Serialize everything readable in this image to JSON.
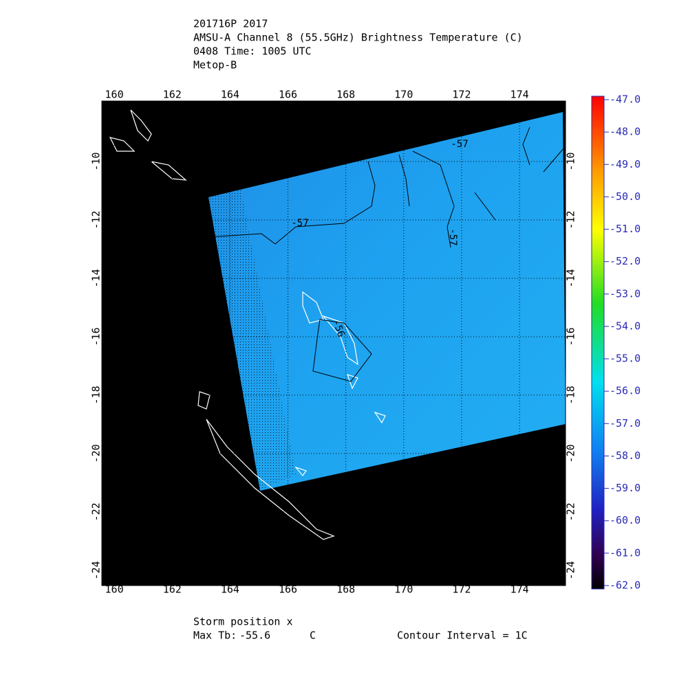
{
  "title_lines": [
    "201716P 2017",
    "AMSU-A Channel 8 (55.5GHz) Brightness Temperature (C)",
    "0408 Time: 1005 UTC",
    "Metop-B"
  ],
  "map": {
    "xlim": [
      159.57,
      175.59
    ],
    "ylim": [
      -24.52,
      -7.93
    ],
    "xticks": [
      160,
      162,
      164,
      166,
      168,
      170,
      172,
      174
    ],
    "yticks": [
      -10,
      -12,
      -14,
      -16,
      -18,
      -20,
      -22,
      -24
    ],
    "grid": true,
    "contour_labels": [
      -57,
      -57,
      -57,
      -56
    ]
  },
  "colorbar": {
    "range": [
      -62,
      -47
    ],
    "ticks": [
      {
        "value": -47,
        "label": "-47.0"
      },
      {
        "value": -48,
        "label": "-48.0"
      },
      {
        "value": -49,
        "label": "-49.0"
      },
      {
        "value": -50,
        "label": "-50.0"
      },
      {
        "value": -51,
        "label": "-51.0"
      },
      {
        "value": -52,
        "label": "-52.0"
      },
      {
        "value": -53,
        "label": "-53.0"
      },
      {
        "value": -54,
        "label": "-54.0"
      },
      {
        "value": -55,
        "label": "-55.0"
      },
      {
        "value": -56,
        "label": "-56.0"
      },
      {
        "value": -57,
        "label": "-57.0"
      },
      {
        "value": -58,
        "label": "-58.0"
      },
      {
        "value": -59,
        "label": "-59.0"
      },
      {
        "value": -60,
        "label": "-60.0"
      },
      {
        "value": -61,
        "label": "-61.0"
      },
      {
        "value": -62,
        "label": "-62.0"
      }
    ]
  },
  "footer": {
    "storm_position": "Storm position x",
    "max_tb_label": "Max Tb:",
    "max_tb": -55.6,
    "unit": "C",
    "contour_interval": "Contour Interval = 1C"
  }
}
